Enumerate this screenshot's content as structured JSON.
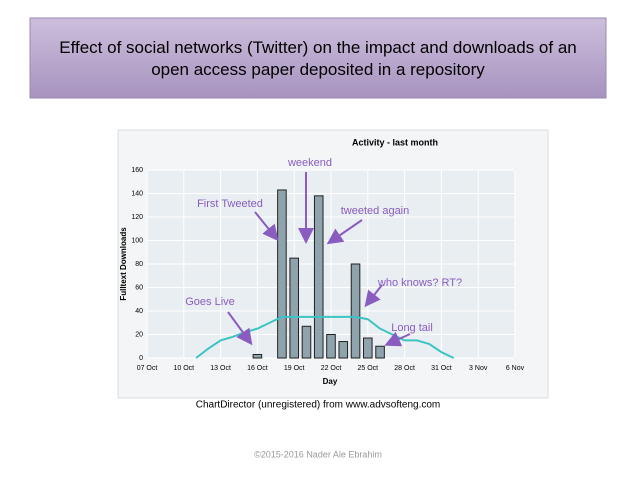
{
  "slide_title": "Effect of social networks (Twitter) on the impact and downloads of an open access paper deposited in a repository",
  "watermark": "ChartDirector (unregistered) from www.advsofteng.com",
  "footer": "©2015-2016  Nader Ale Ebrahim",
  "chart_data": {
    "type": "bar",
    "title": "Activity - last month",
    "y_label": "Fulltext Downloads",
    "x_label": "Day",
    "categories": [
      "07 Oct",
      null,
      null,
      "10 Oct",
      null,
      null,
      "13 Oct",
      null,
      null,
      "16 Oct",
      null,
      null,
      "19 Oct",
      null,
      null,
      "22 Oct",
      null,
      null,
      "25 Oct",
      null,
      null,
      "28 Oct",
      null,
      null,
      "31 Oct",
      null,
      null,
      "3 Nov",
      null,
      null,
      "6 Nov"
    ],
    "series": [
      {
        "type": "bar",
        "color": "#8fa3ad",
        "values": [
          0,
          0,
          0,
          0,
          0,
          0,
          0,
          0,
          0,
          3,
          0,
          143,
          85,
          27,
          138,
          20,
          14,
          80,
          17,
          10,
          0,
          0,
          0,
          0,
          0,
          0,
          0,
          0,
          0,
          0,
          0
        ]
      },
      {
        "type": "line",
        "color": "#3cc4c4",
        "values": [
          null,
          null,
          null,
          null,
          0,
          8,
          15,
          18,
          22,
          25,
          30,
          35,
          35,
          35,
          35,
          35,
          35,
          35,
          33,
          25,
          20,
          15,
          15,
          12,
          5,
          0,
          null,
          null,
          null,
          null,
          null
        ]
      }
    ],
    "ylim": [
      0,
      160
    ],
    "yticks": [
      0,
      20,
      40,
      60,
      80,
      100,
      120,
      140,
      160
    ],
    "grid": true,
    "annotations": [
      "weekend",
      "First Tweeted",
      "tweeted again",
      "who knows? RT?",
      "Goes Live",
      "Long tail"
    ]
  }
}
